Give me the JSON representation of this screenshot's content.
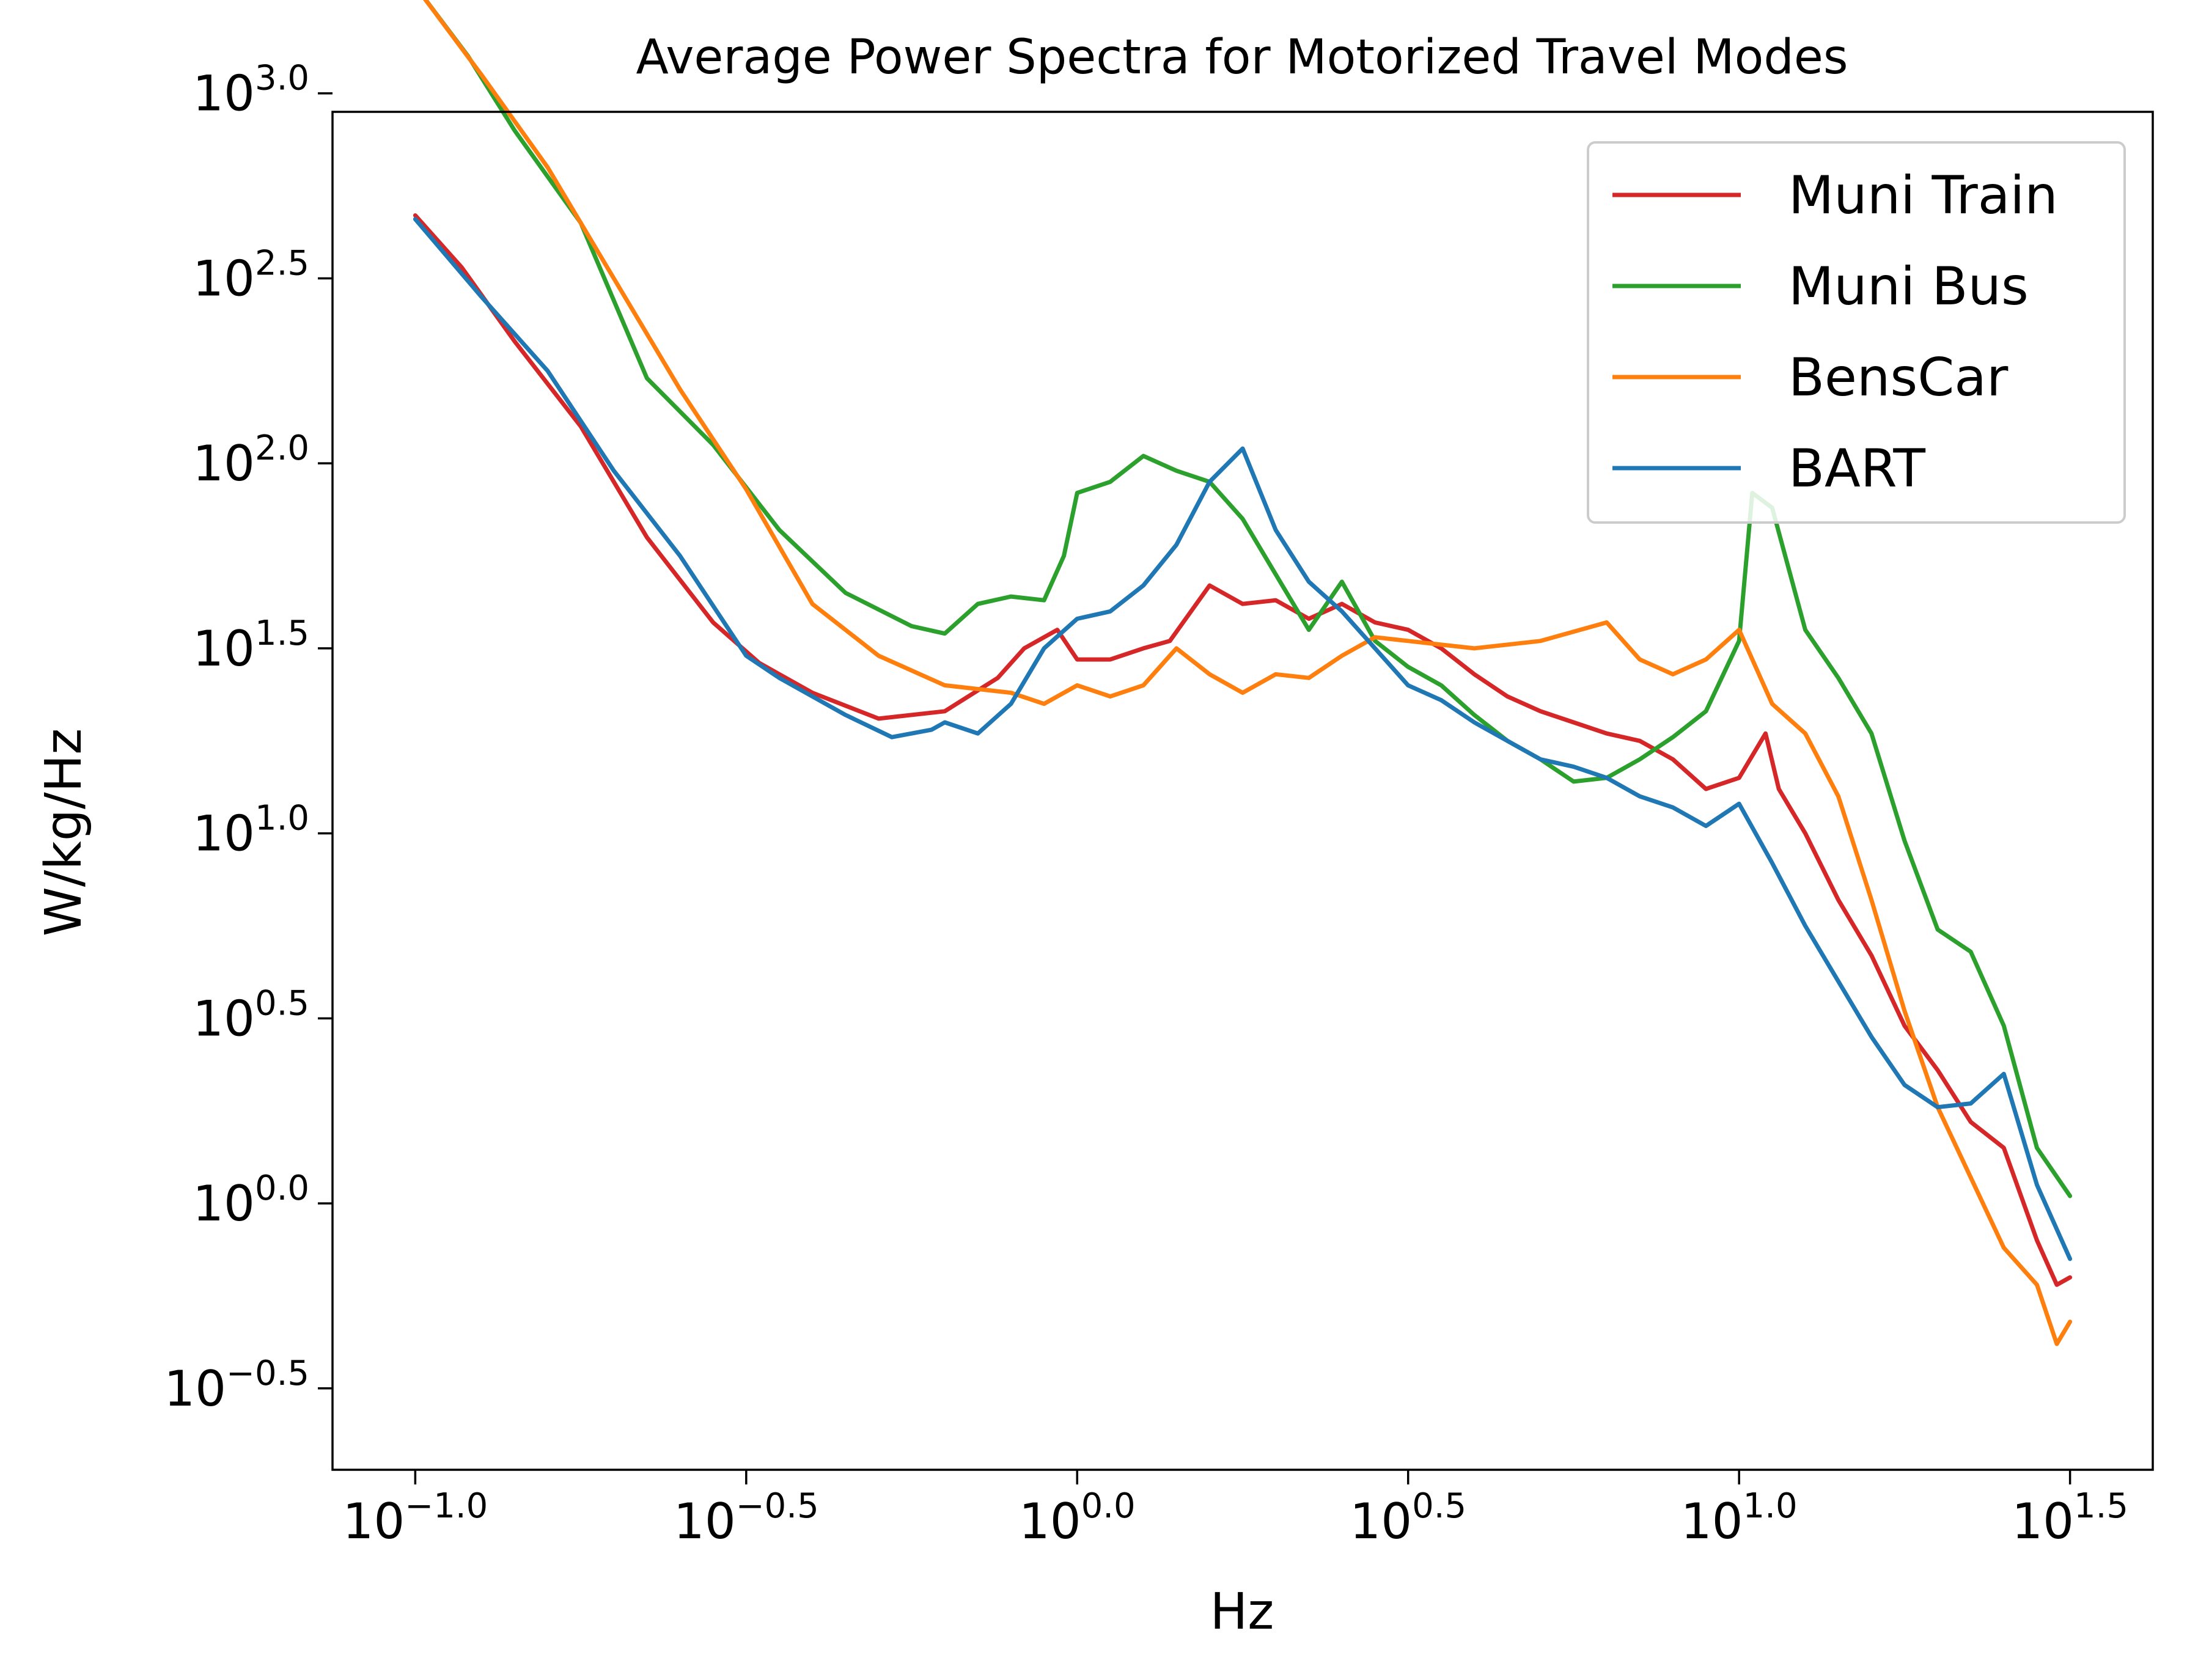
{
  "chart_data": {
    "type": "line",
    "title": "Average Power Spectra for Motorized Travel Modes",
    "xlabel": "Hz",
    "ylabel": "W/kg/Hz",
    "xscale": "log10",
    "yscale": "log10",
    "xlim_log10": [
      -1.125,
      1.625
    ],
    "ylim_log10": [
      -0.72,
      2.95
    ],
    "xticks": [
      {
        "exp": "−1.0",
        "log10": -1.0
      },
      {
        "exp": "−0.5",
        "log10": -0.5
      },
      {
        "exp": "0.0",
        "log10": 0.0
      },
      {
        "exp": "0.5",
        "log10": 0.5
      },
      {
        "exp": "1.0",
        "log10": 1.0
      },
      {
        "exp": "1.5",
        "log10": 1.5
      }
    ],
    "yticks": [
      {
        "exp": "3.0",
        "log10": 3.0
      },
      {
        "exp": "2.5",
        "log10": 2.5
      },
      {
        "exp": "2.0",
        "log10": 2.0
      },
      {
        "exp": "1.5",
        "log10": 1.5
      },
      {
        "exp": "1.0",
        "log10": 1.0
      },
      {
        "exp": "0.5",
        "log10": 0.5
      },
      {
        "exp": "0.0",
        "log10": 0.0
      },
      {
        "exp": "−0.5",
        "log10": -0.5
      }
    ],
    "tick_base": "10",
    "legend_position": "top-right",
    "series": [
      {
        "name": "Muni Train",
        "color": "#d62728",
        "points": [
          [
            -1.0,
            2.67
          ],
          [
            -0.93,
            2.53
          ],
          [
            -0.85,
            2.33
          ],
          [
            -0.75,
            2.1
          ],
          [
            -0.65,
            1.8
          ],
          [
            -0.55,
            1.57
          ],
          [
            -0.48,
            1.46
          ],
          [
            -0.4,
            1.38
          ],
          [
            -0.3,
            1.31
          ],
          [
            -0.2,
            1.33
          ],
          [
            -0.12,
            1.42
          ],
          [
            -0.08,
            1.5
          ],
          [
            -0.03,
            1.55
          ],
          [
            0.0,
            1.47
          ],
          [
            0.05,
            1.47
          ],
          [
            0.1,
            1.5
          ],
          [
            0.14,
            1.52
          ],
          [
            0.2,
            1.67
          ],
          [
            0.25,
            1.62
          ],
          [
            0.3,
            1.63
          ],
          [
            0.35,
            1.58
          ],
          [
            0.4,
            1.62
          ],
          [
            0.45,
            1.57
          ],
          [
            0.5,
            1.55
          ],
          [
            0.55,
            1.5
          ],
          [
            0.6,
            1.43
          ],
          [
            0.65,
            1.37
          ],
          [
            0.7,
            1.33
          ],
          [
            0.75,
            1.3
          ],
          [
            0.8,
            1.27
          ],
          [
            0.85,
            1.25
          ],
          [
            0.9,
            1.2
          ],
          [
            0.95,
            1.12
          ],
          [
            1.0,
            1.15
          ],
          [
            1.04,
            1.27
          ],
          [
            1.06,
            1.12
          ],
          [
            1.1,
            1.0
          ],
          [
            1.15,
            0.82
          ],
          [
            1.2,
            0.67
          ],
          [
            1.25,
            0.48
          ],
          [
            1.3,
            0.36
          ],
          [
            1.35,
            0.22
          ],
          [
            1.4,
            0.15
          ],
          [
            1.45,
            -0.1
          ],
          [
            1.48,
            -0.22
          ],
          [
            1.5,
            -0.2
          ]
        ]
      },
      {
        "name": "Muni Bus",
        "color": "#2ca02c",
        "points": [
          [
            -1.0,
            3.29
          ],
          [
            -0.92,
            3.1
          ],
          [
            -0.85,
            2.9
          ],
          [
            -0.75,
            2.65
          ],
          [
            -0.65,
            2.23
          ],
          [
            -0.55,
            2.05
          ],
          [
            -0.45,
            1.82
          ],
          [
            -0.35,
            1.65
          ],
          [
            -0.25,
            1.56
          ],
          [
            -0.2,
            1.54
          ],
          [
            -0.15,
            1.62
          ],
          [
            -0.1,
            1.64
          ],
          [
            -0.05,
            1.63
          ],
          [
            -0.02,
            1.75
          ],
          [
            0.0,
            1.92
          ],
          [
            0.05,
            1.95
          ],
          [
            0.1,
            2.02
          ],
          [
            0.15,
            1.98
          ],
          [
            0.2,
            1.95
          ],
          [
            0.25,
            1.85
          ],
          [
            0.3,
            1.7
          ],
          [
            0.35,
            1.55
          ],
          [
            0.4,
            1.68
          ],
          [
            0.45,
            1.52
          ],
          [
            0.5,
            1.45
          ],
          [
            0.55,
            1.4
          ],
          [
            0.6,
            1.32
          ],
          [
            0.65,
            1.25
          ],
          [
            0.7,
            1.2
          ],
          [
            0.75,
            1.14
          ],
          [
            0.8,
            1.15
          ],
          [
            0.85,
            1.2
          ],
          [
            0.9,
            1.26
          ],
          [
            0.95,
            1.33
          ],
          [
            1.0,
            1.52
          ],
          [
            1.02,
            1.92
          ],
          [
            1.05,
            1.88
          ],
          [
            1.1,
            1.55
          ],
          [
            1.15,
            1.42
          ],
          [
            1.2,
            1.27
          ],
          [
            1.25,
            0.98
          ],
          [
            1.3,
            0.74
          ],
          [
            1.35,
            0.68
          ],
          [
            1.4,
            0.48
          ],
          [
            1.45,
            0.15
          ],
          [
            1.5,
            0.02
          ]
        ]
      },
      {
        "name": "BensCar",
        "color": "#ff7f0e",
        "points": [
          [
            -1.0,
            3.29
          ],
          [
            -0.9,
            3.05
          ],
          [
            -0.8,
            2.8
          ],
          [
            -0.7,
            2.5
          ],
          [
            -0.6,
            2.2
          ],
          [
            -0.5,
            1.93
          ],
          [
            -0.4,
            1.62
          ],
          [
            -0.3,
            1.48
          ],
          [
            -0.2,
            1.4
          ],
          [
            -0.1,
            1.38
          ],
          [
            -0.05,
            1.35
          ],
          [
            0.0,
            1.4
          ],
          [
            0.05,
            1.37
          ],
          [
            0.1,
            1.4
          ],
          [
            0.15,
            1.5
          ],
          [
            0.2,
            1.43
          ],
          [
            0.25,
            1.38
          ],
          [
            0.3,
            1.43
          ],
          [
            0.35,
            1.42
          ],
          [
            0.4,
            1.48
          ],
          [
            0.45,
            1.53
          ],
          [
            0.5,
            1.52
          ],
          [
            0.6,
            1.5
          ],
          [
            0.7,
            1.52
          ],
          [
            0.8,
            1.57
          ],
          [
            0.85,
            1.47
          ],
          [
            0.9,
            1.43
          ],
          [
            0.95,
            1.47
          ],
          [
            1.0,
            1.55
          ],
          [
            1.05,
            1.35
          ],
          [
            1.1,
            1.27
          ],
          [
            1.15,
            1.1
          ],
          [
            1.2,
            0.82
          ],
          [
            1.25,
            0.52
          ],
          [
            1.3,
            0.26
          ],
          [
            1.35,
            0.07
          ],
          [
            1.4,
            -0.12
          ],
          [
            1.45,
            -0.22
          ],
          [
            1.48,
            -0.38
          ],
          [
            1.5,
            -0.32
          ]
        ]
      },
      {
        "name": "BART",
        "color": "#1f77b4",
        "points": [
          [
            -1.0,
            2.66
          ],
          [
            -0.9,
            2.45
          ],
          [
            -0.8,
            2.25
          ],
          [
            -0.7,
            1.98
          ],
          [
            -0.6,
            1.75
          ],
          [
            -0.5,
            1.48
          ],
          [
            -0.45,
            1.42
          ],
          [
            -0.35,
            1.32
          ],
          [
            -0.28,
            1.26
          ],
          [
            -0.22,
            1.28
          ],
          [
            -0.2,
            1.3
          ],
          [
            -0.15,
            1.27
          ],
          [
            -0.1,
            1.35
          ],
          [
            -0.05,
            1.5
          ],
          [
            0.0,
            1.58
          ],
          [
            0.05,
            1.6
          ],
          [
            0.1,
            1.67
          ],
          [
            0.15,
            1.78
          ],
          [
            0.2,
            1.95
          ],
          [
            0.25,
            2.04
          ],
          [
            0.3,
            1.82
          ],
          [
            0.35,
            1.68
          ],
          [
            0.4,
            1.6
          ],
          [
            0.45,
            1.5
          ],
          [
            0.5,
            1.4
          ],
          [
            0.55,
            1.36
          ],
          [
            0.6,
            1.3
          ],
          [
            0.65,
            1.25
          ],
          [
            0.7,
            1.2
          ],
          [
            0.75,
            1.18
          ],
          [
            0.8,
            1.15
          ],
          [
            0.85,
            1.1
          ],
          [
            0.9,
            1.07
          ],
          [
            0.95,
            1.02
          ],
          [
            1.0,
            1.08
          ],
          [
            1.05,
            0.92
          ],
          [
            1.1,
            0.75
          ],
          [
            1.15,
            0.6
          ],
          [
            1.2,
            0.45
          ],
          [
            1.25,
            0.32
          ],
          [
            1.3,
            0.26
          ],
          [
            1.35,
            0.27
          ],
          [
            1.4,
            0.35
          ],
          [
            1.45,
            0.05
          ],
          [
            1.5,
            -0.15
          ]
        ]
      }
    ]
  }
}
